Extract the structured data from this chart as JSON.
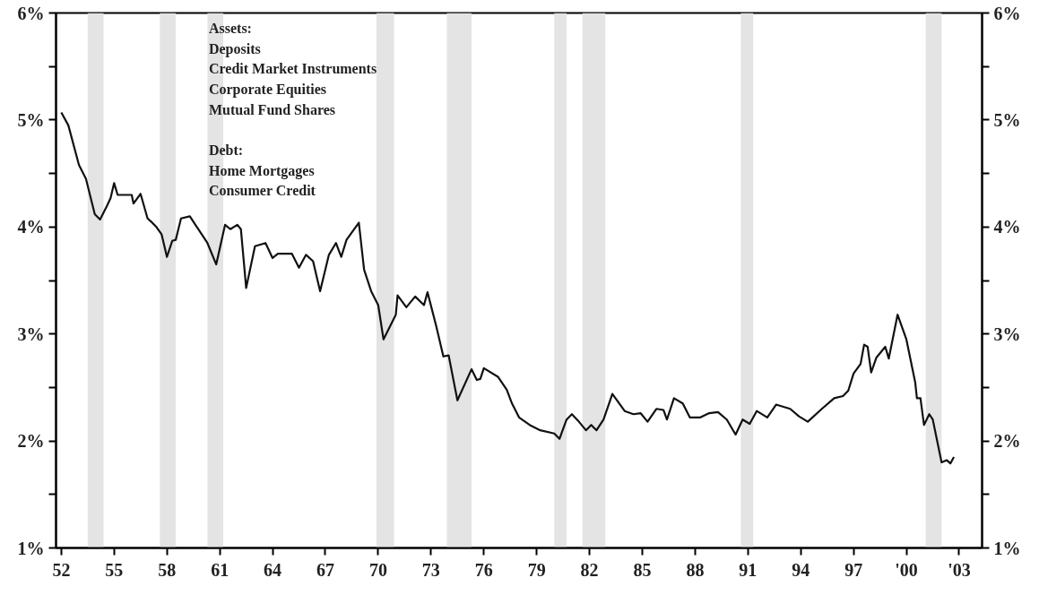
{
  "chart_data": {
    "type": "line",
    "x": [
      1952.0,
      1952.4,
      1953.0,
      1953.4,
      1953.9,
      1954.2,
      1954.6,
      1954.8,
      1955.0,
      1955.2,
      1956.0,
      1956.1,
      1956.5,
      1956.9,
      1957.1,
      1957.4,
      1957.7,
      1958.0,
      1958.3,
      1958.5,
      1958.8,
      1959.3,
      1959.7,
      1960.3,
      1960.8,
      1961.3,
      1961.6,
      1962.0,
      1962.2,
      1962.5,
      1963.0,
      1963.6,
      1964.0,
      1964.3,
      1965.1,
      1965.5,
      1965.9,
      1966.3,
      1966.7,
      1967.2,
      1967.6,
      1967.9,
      1968.2,
      1968.9,
      1969.2,
      1969.6,
      1970.0,
      1970.3,
      1971.0,
      1971.1,
      1971.6,
      1972.1,
      1972.6,
      1972.8,
      1973.3,
      1973.7,
      1974.0,
      1974.5,
      1975.3,
      1975.6,
      1975.8,
      1976.0,
      1976.8,
      1977.3,
      1977.6,
      1978.0,
      1978.6,
      1979.2,
      1980.0,
      1980.3,
      1980.7,
      1981.0,
      1981.4,
      1981.8,
      1982.1,
      1982.4,
      1982.8,
      1983.3,
      1984.0,
      1984.5,
      1984.9,
      1985.3,
      1985.8,
      1986.2,
      1986.4,
      1986.8,
      1987.3,
      1987.7,
      1988.3,
      1988.8,
      1989.3,
      1989.8,
      1990.3,
      1990.7,
      1991.1,
      1991.5,
      1992.1,
      1992.6,
      1993.4,
      1993.9,
      1994.4,
      1995.2,
      1995.9,
      1996.4,
      1996.7,
      1997.0,
      1997.4,
      1997.6,
      1997.8,
      1998.0,
      1998.3,
      1998.8,
      1999.0,
      1999.5,
      2000.0,
      2000.5,
      2000.6,
      2000.8,
      2001.0,
      2001.3,
      2001.5,
      2002.0,
      2002.3,
      2002.5,
      2002.7
    ],
    "series": [
      {
        "color": "#111111",
        "values": [
          5.07,
          4.95,
          4.58,
          4.45,
          4.12,
          4.07,
          4.2,
          4.27,
          4.41,
          4.3,
          4.3,
          4.22,
          4.31,
          4.08,
          4.05,
          4.0,
          3.93,
          3.72,
          3.87,
          3.88,
          4.08,
          4.1,
          4.0,
          3.85,
          3.65,
          4.02,
          3.98,
          4.02,
          3.98,
          3.43,
          3.82,
          3.85,
          3.71,
          3.75,
          3.75,
          3.62,
          3.74,
          3.68,
          3.4,
          3.74,
          3.85,
          3.72,
          3.88,
          4.04,
          3.6,
          3.4,
          3.27,
          2.95,
          3.18,
          3.36,
          3.25,
          3.35,
          3.27,
          3.39,
          3.07,
          2.79,
          2.8,
          2.38,
          2.67,
          2.57,
          2.58,
          2.68,
          2.6,
          2.48,
          2.35,
          2.22,
          2.15,
          2.1,
          2.07,
          2.02,
          2.2,
          2.25,
          2.18,
          2.1,
          2.15,
          2.1,
          2.2,
          2.44,
          2.28,
          2.25,
          2.26,
          2.18,
          2.3,
          2.29,
          2.2,
          2.4,
          2.35,
          2.22,
          2.22,
          2.26,
          2.27,
          2.2,
          2.06,
          2.2,
          2.16,
          2.28,
          2.22,
          2.34,
          2.3,
          2.23,
          2.18,
          2.3,
          2.4,
          2.42,
          2.47,
          2.63,
          2.72,
          2.9,
          2.88,
          2.64,
          2.78,
          2.88,
          2.77,
          3.18,
          2.95,
          2.55,
          2.4,
          2.4,
          2.15,
          2.25,
          2.2,
          1.8,
          1.82,
          1.79,
          1.85
        ]
      }
    ],
    "xlim": [
      1951.7,
      2004.3
    ],
    "xticks": [
      {
        "value": 1952,
        "label": "52"
      },
      {
        "value": 1955,
        "label": "55"
      },
      {
        "value": 1958,
        "label": "58"
      },
      {
        "value": 1961,
        "label": "61"
      },
      {
        "value": 1964,
        "label": "64"
      },
      {
        "value": 1967,
        "label": "67"
      },
      {
        "value": 1970,
        "label": "70"
      },
      {
        "value": 1973,
        "label": "73"
      },
      {
        "value": 1976,
        "label": "76"
      },
      {
        "value": 1979,
        "label": "79"
      },
      {
        "value": 1982,
        "label": "82"
      },
      {
        "value": 1985,
        "label": "85"
      },
      {
        "value": 1988,
        "label": "88"
      },
      {
        "value": 1991,
        "label": "91"
      },
      {
        "value": 1994,
        "label": "94"
      },
      {
        "value": 1997,
        "label": "97"
      },
      {
        "value": 2000,
        "label": "'00"
      },
      {
        "value": 2003,
        "label": "'03"
      }
    ],
    "ylim": [
      1,
      6
    ],
    "yticks": [
      {
        "value": 1,
        "label": "1%"
      },
      {
        "value": 1.5,
        "label": null
      },
      {
        "value": 2,
        "label": "2%"
      },
      {
        "value": 2.5,
        "label": null
      },
      {
        "value": 3,
        "label": "3%"
      },
      {
        "value": 3.5,
        "label": null
      },
      {
        "value": 4,
        "label": "4%"
      },
      {
        "value": 4.5,
        "label": null
      },
      {
        "value": 5,
        "label": "5%"
      },
      {
        "value": 5.5,
        "label": null
      },
      {
        "value": 6,
        "label": "6%"
      }
    ],
    "y2lim": [
      1,
      6
    ],
    "y2ticks": [
      {
        "value": 1,
        "label": "1%"
      },
      {
        "value": 1.5,
        "label": null
      },
      {
        "value": 2,
        "label": "2%"
      },
      {
        "value": 2.5,
        "label": null
      },
      {
        "value": 3,
        "label": "3%"
      },
      {
        "value": 3.5,
        "label": null
      },
      {
        "value": 4,
        "label": "4%"
      },
      {
        "value": 4.5,
        "label": null
      },
      {
        "value": 5,
        "label": "5%"
      },
      {
        "value": 5.5,
        "label": null
      },
      {
        "value": 6,
        "label": "6%"
      }
    ],
    "bands": [
      {
        "axis": "x",
        "from": 1953.5,
        "to": 1954.4,
        "color": "#e4e4e4"
      },
      {
        "axis": "x",
        "from": 1957.6,
        "to": 1958.5,
        "color": "#e4e4e4"
      },
      {
        "axis": "x",
        "from": 1960.3,
        "to": 1961.2,
        "color": "#e4e4e4"
      },
      {
        "axis": "x",
        "from": 1969.9,
        "to": 1970.9,
        "color": "#e4e4e4"
      },
      {
        "axis": "x",
        "from": 1973.9,
        "to": 1975.3,
        "color": "#e4e4e4"
      },
      {
        "axis": "x",
        "from": 1980.0,
        "to": 1980.7,
        "color": "#e4e4e4"
      },
      {
        "axis": "x",
        "from": 1981.6,
        "to": 1982.9,
        "color": "#e4e4e4"
      },
      {
        "axis": "x",
        "from": 1990.6,
        "to": 1991.3,
        "color": "#e4e4e4"
      },
      {
        "axis": "x",
        "from": 2001.1,
        "to": 2002.0,
        "color": "#e4e4e4"
      }
    ],
    "annotations": [
      "Assets:",
      "Deposits",
      "Credit Market Instruments",
      "Corporate Equities",
      "Mutual Fund Shares",
      "Debt:",
      "Home Mortgages",
      "Consumer Credit"
    ],
    "grid": false,
    "line_style": "solid",
    "marker": "none"
  }
}
